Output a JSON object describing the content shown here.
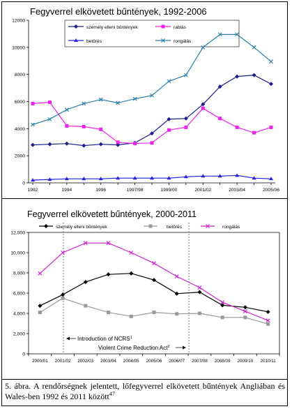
{
  "figure": {
    "caption": {
      "text": "5. ábra. A rendőrségnek jelentett, lőfegyverrel elkövetett bűntények Angliában és Wales-ben 1992 és 2011 között",
      "footnote": "47"
    }
  },
  "chart_data": [
    {
      "type": "line",
      "title": "Fegyverrel elkövetett bűntények, 1992-2006",
      "xlabel": "",
      "ylabel": "",
      "ylim": [
        0,
        12000
      ],
      "yticks": [
        0,
        2000,
        4000,
        6000,
        8000,
        10000,
        12000
      ],
      "grid": false,
      "legend_placement": "top-left",
      "x_labels": [
        "1992",
        "1994",
        "1996",
        "1997/98",
        "1999/00",
        "2001/02",
        "2003/04",
        "2005/06"
      ],
      "x_label_indices": [
        0,
        2,
        4,
        6,
        8,
        10,
        12,
        14
      ],
      "categories": [
        "1992",
        "1993",
        "1994",
        "1995",
        "1996",
        "1997",
        "1997/98",
        "1998/99",
        "1999/00",
        "2000/01",
        "2001/02",
        "2002/03",
        "2003/04",
        "2004/05",
        "2005/06"
      ],
      "series": [
        {
          "name": "személy elleni bűntények",
          "color": "#1c1c8c",
          "marker": "diamond",
          "values": [
            2800,
            2850,
            2900,
            2750,
            2850,
            2800,
            2950,
            3650,
            4700,
            4750,
            5800,
            7100,
            7850,
            7950,
            7300
          ]
        },
        {
          "name": "rablás",
          "color": "#ee22ee",
          "marker": "square",
          "values": [
            5850,
            5950,
            4200,
            4150,
            3950,
            3000,
            2900,
            2950,
            3900,
            4100,
            5500,
            4750,
            4100,
            3700,
            4100
          ]
        },
        {
          "name": "betörés",
          "color": "#2222dd",
          "marker": "triangle",
          "values": [
            200,
            250,
            300,
            300,
            300,
            350,
            350,
            350,
            350,
            450,
            500,
            500,
            550,
            350,
            300
          ]
        },
        {
          "name": "rongálás",
          "color": "#2a7fa8",
          "marker": "x",
          "values": [
            4300,
            4700,
            5400,
            5850,
            6150,
            5900,
            6200,
            6450,
            7500,
            7950,
            10000,
            10950,
            10950,
            10000,
            8950
          ]
        }
      ]
    },
    {
      "type": "line",
      "title": "Fegyverrel elkövetett bűntények, 2000-2011",
      "xlabel": "",
      "ylabel": "",
      "ylim": [
        0,
        12000
      ],
      "yticks": [
        "0",
        "2,000",
        "4,000",
        "6,000",
        "8,000",
        "10,000",
        "12,000"
      ],
      "grid": false,
      "legend_placement": "top",
      "categories": [
        "2000/01",
        "2001/02",
        "2002/03",
        "2003/04",
        "2004/05",
        "2005/06",
        "2006/07",
        "2007/08",
        "2008/09",
        "2009/10",
        "2010/11"
      ],
      "series": [
        {
          "name": "személy elleni bűntények",
          "color": "#000000",
          "marker": "diamond",
          "values": [
            4750,
            5850,
            7100,
            7850,
            7950,
            7300,
            5950,
            6100,
            4800,
            4600,
            4150
          ]
        },
        {
          "name": "betörés",
          "color": "#999999",
          "marker": "square",
          "values": [
            4100,
            5500,
            4750,
            4100,
            3700,
            4100,
            3950,
            4000,
            3600,
            3600,
            2950
          ]
        },
        {
          "name": "rongálás",
          "color": "#cc22cc",
          "marker": "x",
          "values": [
            7950,
            10000,
            10950,
            10950,
            10000,
            8950,
            7650,
            6550,
            5100,
            4200,
            3300
          ]
        }
      ],
      "annotations": [
        {
          "text": "Introduction of NCRS",
          "sup": "1"
        },
        {
          "text": "Violent Crime Reduction Act",
          "sup": "2"
        }
      ]
    }
  ]
}
